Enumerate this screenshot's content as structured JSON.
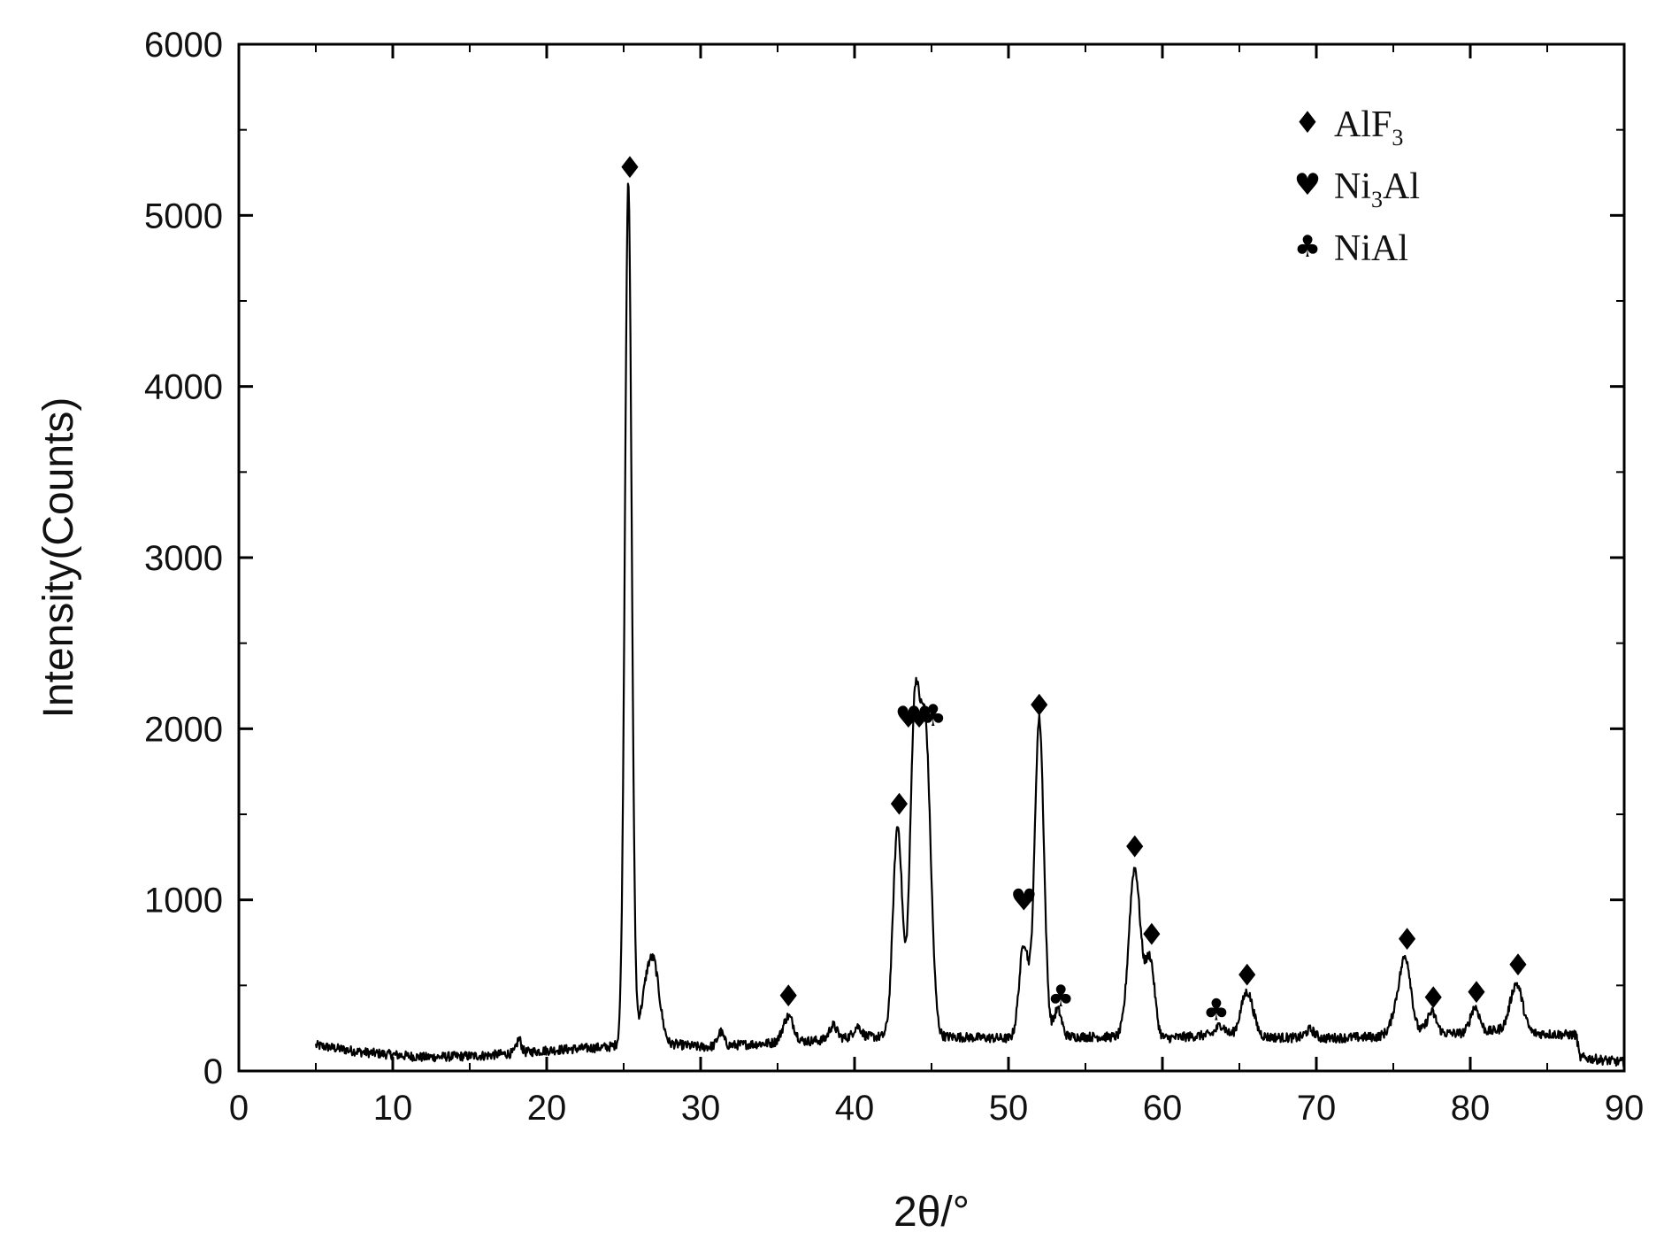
{
  "chart_data": {
    "type": "line",
    "xlabel": "2θ/°",
    "ylabel": "Intensity(Counts)",
    "xlim": [
      0,
      90
    ],
    "ylim": [
      0,
      6000
    ],
    "x_ticks": [
      0,
      10,
      20,
      30,
      40,
      50,
      60,
      70,
      80,
      90
    ],
    "y_ticks": [
      0,
      1000,
      2000,
      3000,
      4000,
      5000,
      6000
    ],
    "grid": false,
    "legend_position": "top-right",
    "legend": [
      {
        "marker": "diamond",
        "symbol": "♦",
        "label": "AlF",
        "sub": "3",
        "label_after": ""
      },
      {
        "marker": "heart",
        "symbol": "♥",
        "label": "Ni",
        "sub": "3",
        "label_after": "Al"
      },
      {
        "marker": "club",
        "symbol": "♣",
        "label": "NiAl",
        "sub": "",
        "label_after": ""
      }
    ],
    "series": [
      {
        "color": "#000000",
        "baseline": [
          [
            5,
            150
          ],
          [
            8,
            110
          ],
          [
            12,
            80
          ],
          [
            16,
            90
          ],
          [
            20,
            120
          ],
          [
            24,
            140
          ],
          [
            25,
            160
          ],
          [
            27,
            300
          ],
          [
            28,
            160
          ],
          [
            30,
            140
          ],
          [
            34,
            160
          ],
          [
            38,
            180
          ],
          [
            40,
            200
          ],
          [
            42,
            200
          ],
          [
            46,
            200
          ],
          [
            50,
            190
          ],
          [
            53,
            200
          ],
          [
            56,
            200
          ],
          [
            60,
            190
          ],
          [
            63,
            210
          ],
          [
            66,
            200
          ],
          [
            70,
            190
          ],
          [
            74,
            200
          ],
          [
            75,
            240
          ],
          [
            78,
            220
          ],
          [
            80,
            220
          ],
          [
            82,
            240
          ],
          [
            84,
            220
          ],
          [
            86.9,
            210
          ],
          [
            87.1,
            80
          ],
          [
            90,
            50
          ]
        ],
        "peaks": [
          {
            "x": 18.2,
            "h": 80,
            "w": 0.15
          },
          {
            "x": 25.3,
            "h": 5000,
            "w": 0.22
          },
          {
            "x": 26.6,
            "h": 300,
            "w": 0.35
          },
          {
            "x": 27.1,
            "h": 200,
            "w": 0.3
          },
          {
            "x": 31.3,
            "h": 80,
            "w": 0.2
          },
          {
            "x": 35.7,
            "h": 150,
            "w": 0.35
          },
          {
            "x": 38.6,
            "h": 80,
            "w": 0.25
          },
          {
            "x": 40.2,
            "h": 60,
            "w": 0.25
          },
          {
            "x": 42.8,
            "h": 1230,
            "w": 0.3
          },
          {
            "x": 43.9,
            "h": 1780,
            "w": 0.3
          },
          {
            "x": 44.6,
            "h": 1770,
            "w": 0.35
          },
          {
            "x": 51.0,
            "h": 550,
            "w": 0.3
          },
          {
            "x": 52.0,
            "h": 1860,
            "w": 0.3
          },
          {
            "x": 53.2,
            "h": 160,
            "w": 0.25
          },
          {
            "x": 58.2,
            "h": 990,
            "w": 0.38
          },
          {
            "x": 59.2,
            "h": 450,
            "w": 0.3
          },
          {
            "x": 63.8,
            "h": 60,
            "w": 0.3
          },
          {
            "x": 65.5,
            "h": 260,
            "w": 0.4
          },
          {
            "x": 69.6,
            "h": 50,
            "w": 0.3
          },
          {
            "x": 75.2,
            "h": 100,
            "w": 0.3
          },
          {
            "x": 75.8,
            "h": 420,
            "w": 0.35
          },
          {
            "x": 77.5,
            "h": 120,
            "w": 0.3
          },
          {
            "x": 80.3,
            "h": 150,
            "w": 0.3
          },
          {
            "x": 83.0,
            "h": 280,
            "w": 0.4
          }
        ]
      }
    ],
    "peak_markers": [
      {
        "x": 25.4,
        "y": 5280,
        "symbol": "♦"
      },
      {
        "x": 35.7,
        "y": 440,
        "symbol": "♦"
      },
      {
        "x": 42.9,
        "y": 1560,
        "symbol": "♦"
      },
      {
        "x": 43.5,
        "y": 2070,
        "symbol": "♥"
      },
      {
        "x": 44.2,
        "y": 2070,
        "symbol": "♥"
      },
      {
        "x": 45.1,
        "y": 2080,
        "symbol": "♣"
      },
      {
        "x": 51.0,
        "y": 1000,
        "symbol": "♥"
      },
      {
        "x": 52.0,
        "y": 2140,
        "symbol": "♦"
      },
      {
        "x": 53.4,
        "y": 440,
        "symbol": "♣"
      },
      {
        "x": 58.2,
        "y": 1310,
        "symbol": "♦"
      },
      {
        "x": 59.3,
        "y": 800,
        "symbol": "♦"
      },
      {
        "x": 63.5,
        "y": 360,
        "symbol": "♣"
      },
      {
        "x": 65.5,
        "y": 560,
        "symbol": "♦"
      },
      {
        "x": 75.9,
        "y": 770,
        "symbol": "♦"
      },
      {
        "x": 77.6,
        "y": 430,
        "symbol": "♦"
      },
      {
        "x": 80.4,
        "y": 460,
        "symbol": "♦"
      },
      {
        "x": 83.1,
        "y": 620,
        "symbol": "♦"
      }
    ]
  }
}
